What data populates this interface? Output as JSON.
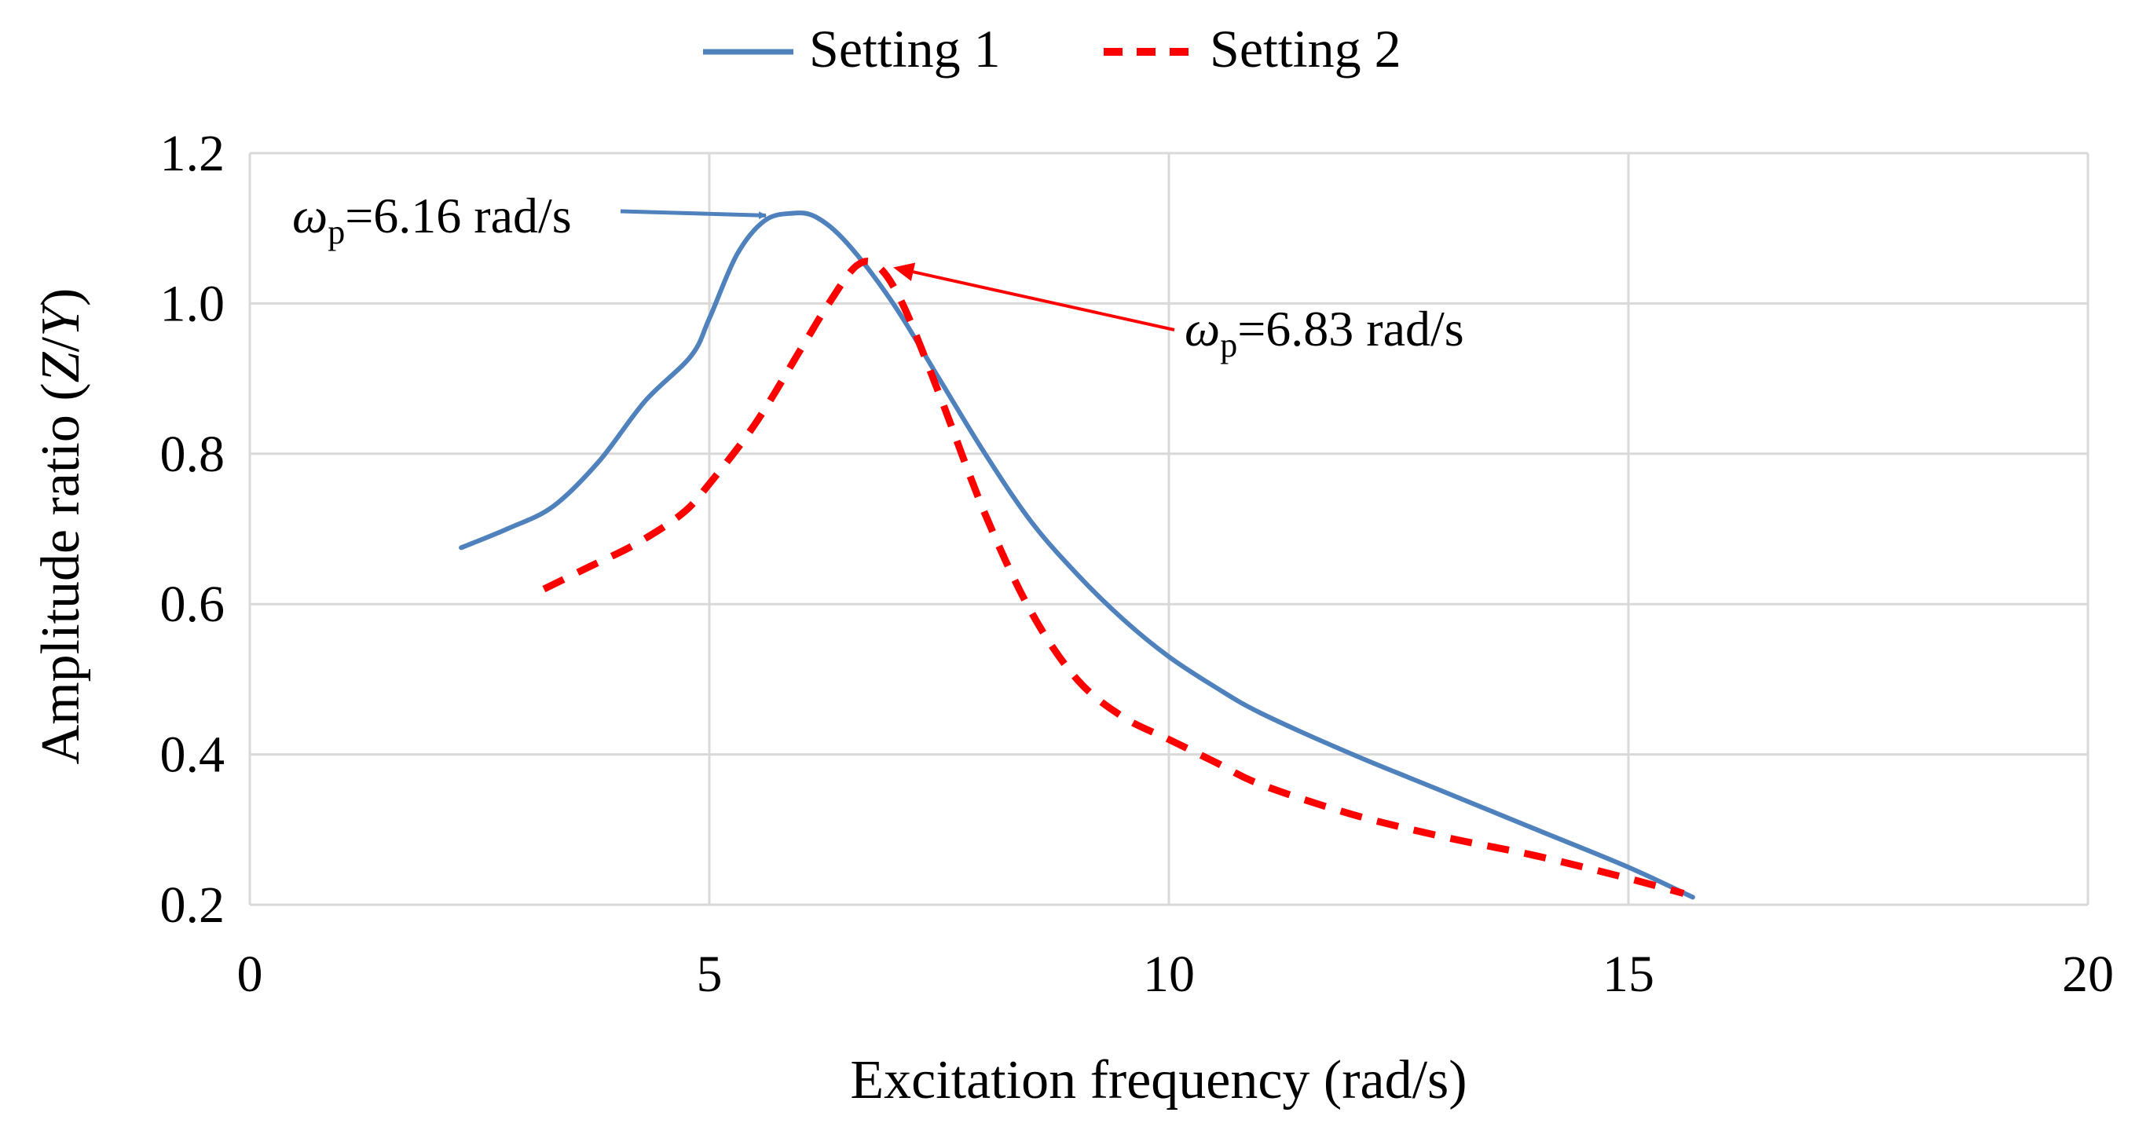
{
  "chart_data": {
    "type": "line",
    "title": "",
    "xlabel": "Excitation frequency (rad/s)",
    "ylabel_parts": {
      "prefix": "Amplitude ratio (",
      "num": "Z",
      "slash": "/",
      "den": "Y",
      "suffix": ")"
    },
    "xlim": [
      0,
      20
    ],
    "ylim": [
      0.2,
      1.2
    ],
    "x_ticks": [
      0,
      5,
      10,
      15,
      20
    ],
    "y_ticks": [
      0.2,
      0.4,
      0.6,
      0.8,
      1.0,
      1.2
    ],
    "x_tick_labels": [
      "0",
      "5",
      "10",
      "15",
      "20"
    ],
    "y_tick_labels": [
      "0.2",
      "0.4",
      "0.6",
      "0.8",
      "1.0",
      "1.2"
    ],
    "grid": true,
    "legend_position": "top-center",
    "series": [
      {
        "name": "Setting 1",
        "style": "solid",
        "color": "#4f81bd",
        "x": [
          2.3,
          2.8,
          3.3,
          3.8,
          4.3,
          4.8,
          5.0,
          5.3,
          5.6,
          5.9,
          6.16,
          6.5,
          7.0,
          7.5,
          8.0,
          8.5,
          9.0,
          9.5,
          10.0,
          10.5,
          11.0,
          12.0,
          13.0,
          14.0,
          15.0,
          15.7
        ],
        "y": [
          0.675,
          0.7,
          0.73,
          0.79,
          0.87,
          0.93,
          0.98,
          1.065,
          1.11,
          1.12,
          1.115,
          1.08,
          1.0,
          0.9,
          0.8,
          0.71,
          0.64,
          0.58,
          0.53,
          0.49,
          0.455,
          0.4,
          0.35,
          0.3,
          0.25,
          0.21
        ]
      },
      {
        "name": "Setting 2",
        "style": "dashed",
        "color": "#ff0000",
        "x": [
          3.2,
          3.7,
          4.2,
          4.7,
          5.0,
          5.5,
          6.0,
          6.3,
          6.6,
          6.83,
          7.1,
          7.5,
          8.0,
          8.5,
          9.0,
          9.5,
          10.0,
          10.5,
          11.0,
          12.0,
          13.0,
          14.0,
          15.0,
          15.6
        ],
        "y": [
          0.62,
          0.65,
          0.68,
          0.72,
          0.76,
          0.84,
          0.94,
          1.0,
          1.05,
          1.05,
          1.0,
          0.88,
          0.72,
          0.59,
          0.5,
          0.45,
          0.42,
          0.39,
          0.36,
          0.32,
          0.29,
          0.265,
          0.235,
          0.215
        ]
      }
    ],
    "annotations": [
      {
        "sym": "ω",
        "sub": "p",
        "text": "=6.16 rad/s",
        "series": 0,
        "point_x": 6.0,
        "point_y": 1.115,
        "color": "#4f81bd"
      },
      {
        "sym": "ω",
        "sub": "p",
        "text": "=6.83 rad/s",
        "series": 1,
        "point_x": 6.95,
        "point_y": 1.05,
        "color": "#ff0000"
      }
    ],
    "colors": {
      "grid": "#d9d9d9",
      "axis": "#d9d9d9",
      "text": "#000000"
    }
  }
}
